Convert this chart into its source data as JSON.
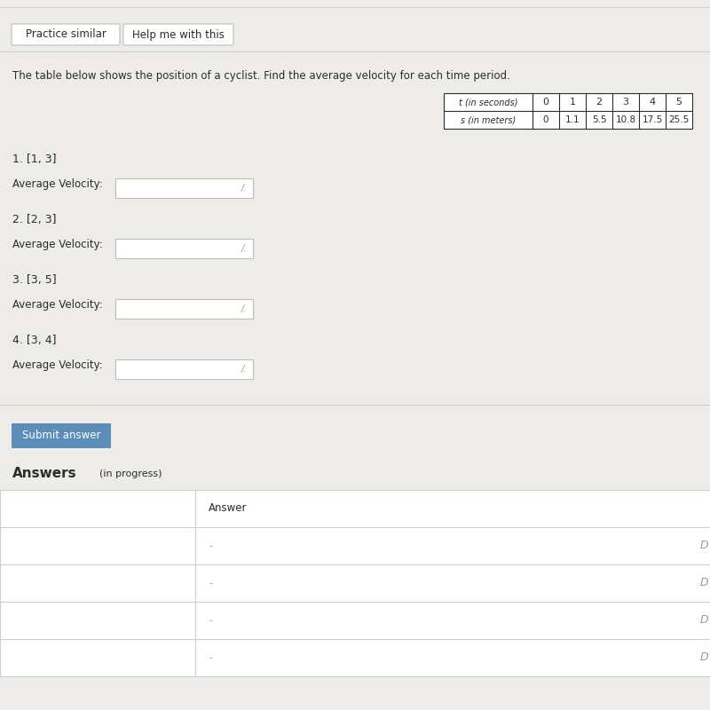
{
  "bg_color": "#eeece9",
  "white": "#ffffff",
  "text_color": "#2c2c2c",
  "light_gray": "#d0ceca",
  "medium_gray": "#c0bcb8",
  "dark_gray": "#999999",
  "button_blue": "#5b8db8",
  "button_text": "#ffffff",
  "btn1_label": "Practice similar",
  "btn2_label": "Help me with this",
  "problem_text": "The table below shows the position of a cyclist. Find the average velocity for each time period.",
  "table_t_label": "t (in seconds)",
  "table_s_label": "s (in meters)",
  "t_values": [
    "0",
    "1",
    "2",
    "3",
    "4",
    "5"
  ],
  "s_values": [
    "0",
    "1.1",
    "5.5",
    "10.8",
    "17.5",
    "25.5"
  ],
  "questions": [
    {
      "num": "1.",
      "interval": "[1, 3]"
    },
    {
      "num": "2.",
      "interval": "[2, 3]"
    },
    {
      "num": "3.",
      "interval": "[3, 5]"
    },
    {
      "num": "4.",
      "interval": "[3, 4]"
    }
  ],
  "avg_vel_label": "Average Velocity:",
  "submit_label": "Submit answer",
  "answers_label": "Answers",
  "in_progress_label": "(in progress)",
  "answer_col_label": "Answer",
  "dot": "-"
}
